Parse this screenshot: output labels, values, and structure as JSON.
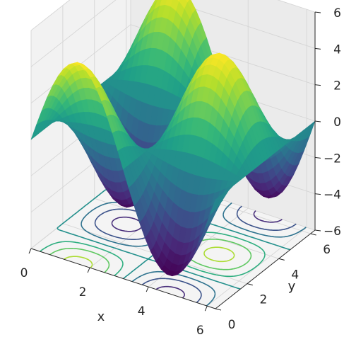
{
  "chart_data": {
    "type": "surface3d",
    "title": "",
    "xlabel": "x",
    "ylabel": "y",
    "zlabel": "",
    "xlim": [
      0,
      6.283
    ],
    "ylim": [
      0,
      6.283
    ],
    "zlim": [
      -6,
      6
    ],
    "x_ticks": [
      "0",
      "2",
      "4",
      "6"
    ],
    "y_ticks": [
      "0",
      "2",
      "4",
      "6"
    ],
    "z_ticks": [
      "−6",
      "−4",
      "−2",
      "0",
      "2",
      "4",
      "6"
    ],
    "grid": true,
    "colormap": "viridis",
    "contour_projection_z": -6,
    "surface_function": "z = 5*sin(x)*cos(y) + ...",
    "sample_points": [
      {
        "x": 0,
        "y": 0,
        "z": 0
      },
      {
        "x": 1.57,
        "y": 0,
        "z": 5
      },
      {
        "x": 1.57,
        "y": 3.14,
        "z": -5
      },
      {
        "x": 4.71,
        "y": 0,
        "z": -5
      },
      {
        "x": 4.71,
        "y": 3.14,
        "z": 5
      },
      {
        "x": 3.14,
        "y": 3.14,
        "z": 0
      }
    ]
  }
}
